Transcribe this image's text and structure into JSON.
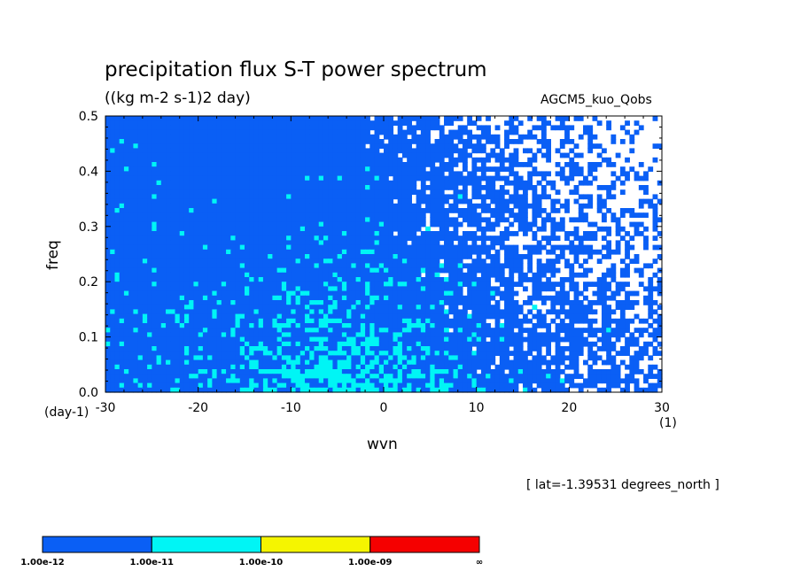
{
  "chart_data": {
    "type": "heatmap",
    "title": "precipitation flux S-T power spectrum",
    "subtitle": "((kg m-2 s-1)2 day)",
    "annotation_right": "AGCM5_kuo_Qobs",
    "xlabel": "wvn",
    "xunit": "(1)",
    "ylabel": "freq",
    "yunit": "(day-1)",
    "xlim": [
      -30,
      30
    ],
    "ylim": [
      0.0,
      0.5
    ],
    "xticks": [
      "-30",
      "-20",
      "-10",
      "0",
      "10",
      "20",
      "30"
    ],
    "yticks": [
      "0.0",
      "0.1",
      "0.2",
      "0.3",
      "0.4",
      "0.5"
    ],
    "footer": "[ lat=-1.39531 degrees_north ]",
    "colorbar": {
      "levels": [
        "1.00e-12",
        "1.00e-11",
        "1.00e-10",
        "1.00e-09",
        "∞"
      ],
      "colors": [
        "#0a5ff5",
        "#00f5f5",
        "#f5f500",
        "#f50000"
      ]
    },
    "grid": false
  }
}
